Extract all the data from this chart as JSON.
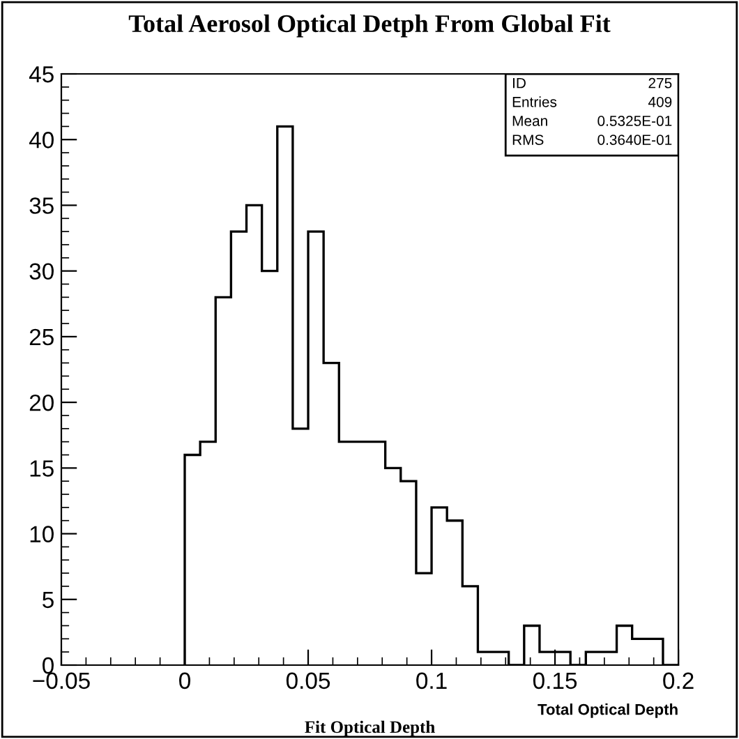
{
  "chart_data": {
    "type": "histogram",
    "title": "Total Aerosol Optical Detph From Global Fit",
    "xlabel": "Fit Optical Depth",
    "bins": [
      0,
      0.00625,
      0.0125,
      0.01875,
      0.025,
      0.03125,
      0.0375,
      0.04375,
      0.05,
      0.05625,
      0.0625,
      0.06875,
      0.075,
      0.08125,
      0.0875,
      0.09375,
      0.1,
      0.10625,
      0.1125,
      0.11875,
      0.125,
      0.13125,
      0.1375,
      0.14375,
      0.15,
      0.15625,
      0.1625,
      0.16875,
      0.175,
      0.18125,
      0.1875,
      0.19375,
      0.2
    ],
    "values": [
      16,
      17,
      28,
      33,
      35,
      30,
      41,
      18,
      33,
      23,
      17,
      17,
      17,
      15,
      14,
      7,
      12,
      11,
      6,
      1,
      1,
      0,
      3,
      1,
      1,
      0,
      1,
      1,
      3,
      2,
      2,
      0
    ],
    "color": "#000000",
    "xlim": [
      -0.05,
      0.2
    ],
    "xticks": [
      {
        "value": -0.05,
        "label": "−0.05"
      },
      0,
      0.05,
      0.1,
      0.15,
      0.2
    ],
    "ylim": [
      0,
      45
    ],
    "yticks": [
      0,
      5,
      10,
      15,
      20,
      25,
      30,
      35,
      40,
      45
    ],
    "grid": false,
    "annotations": [
      "ID",
      "275",
      "Entries",
      "409",
      "Mean",
      "0.5325E-01",
      "RMS",
      "0.3640E-01",
      "Total Optical Depth"
    ]
  }
}
